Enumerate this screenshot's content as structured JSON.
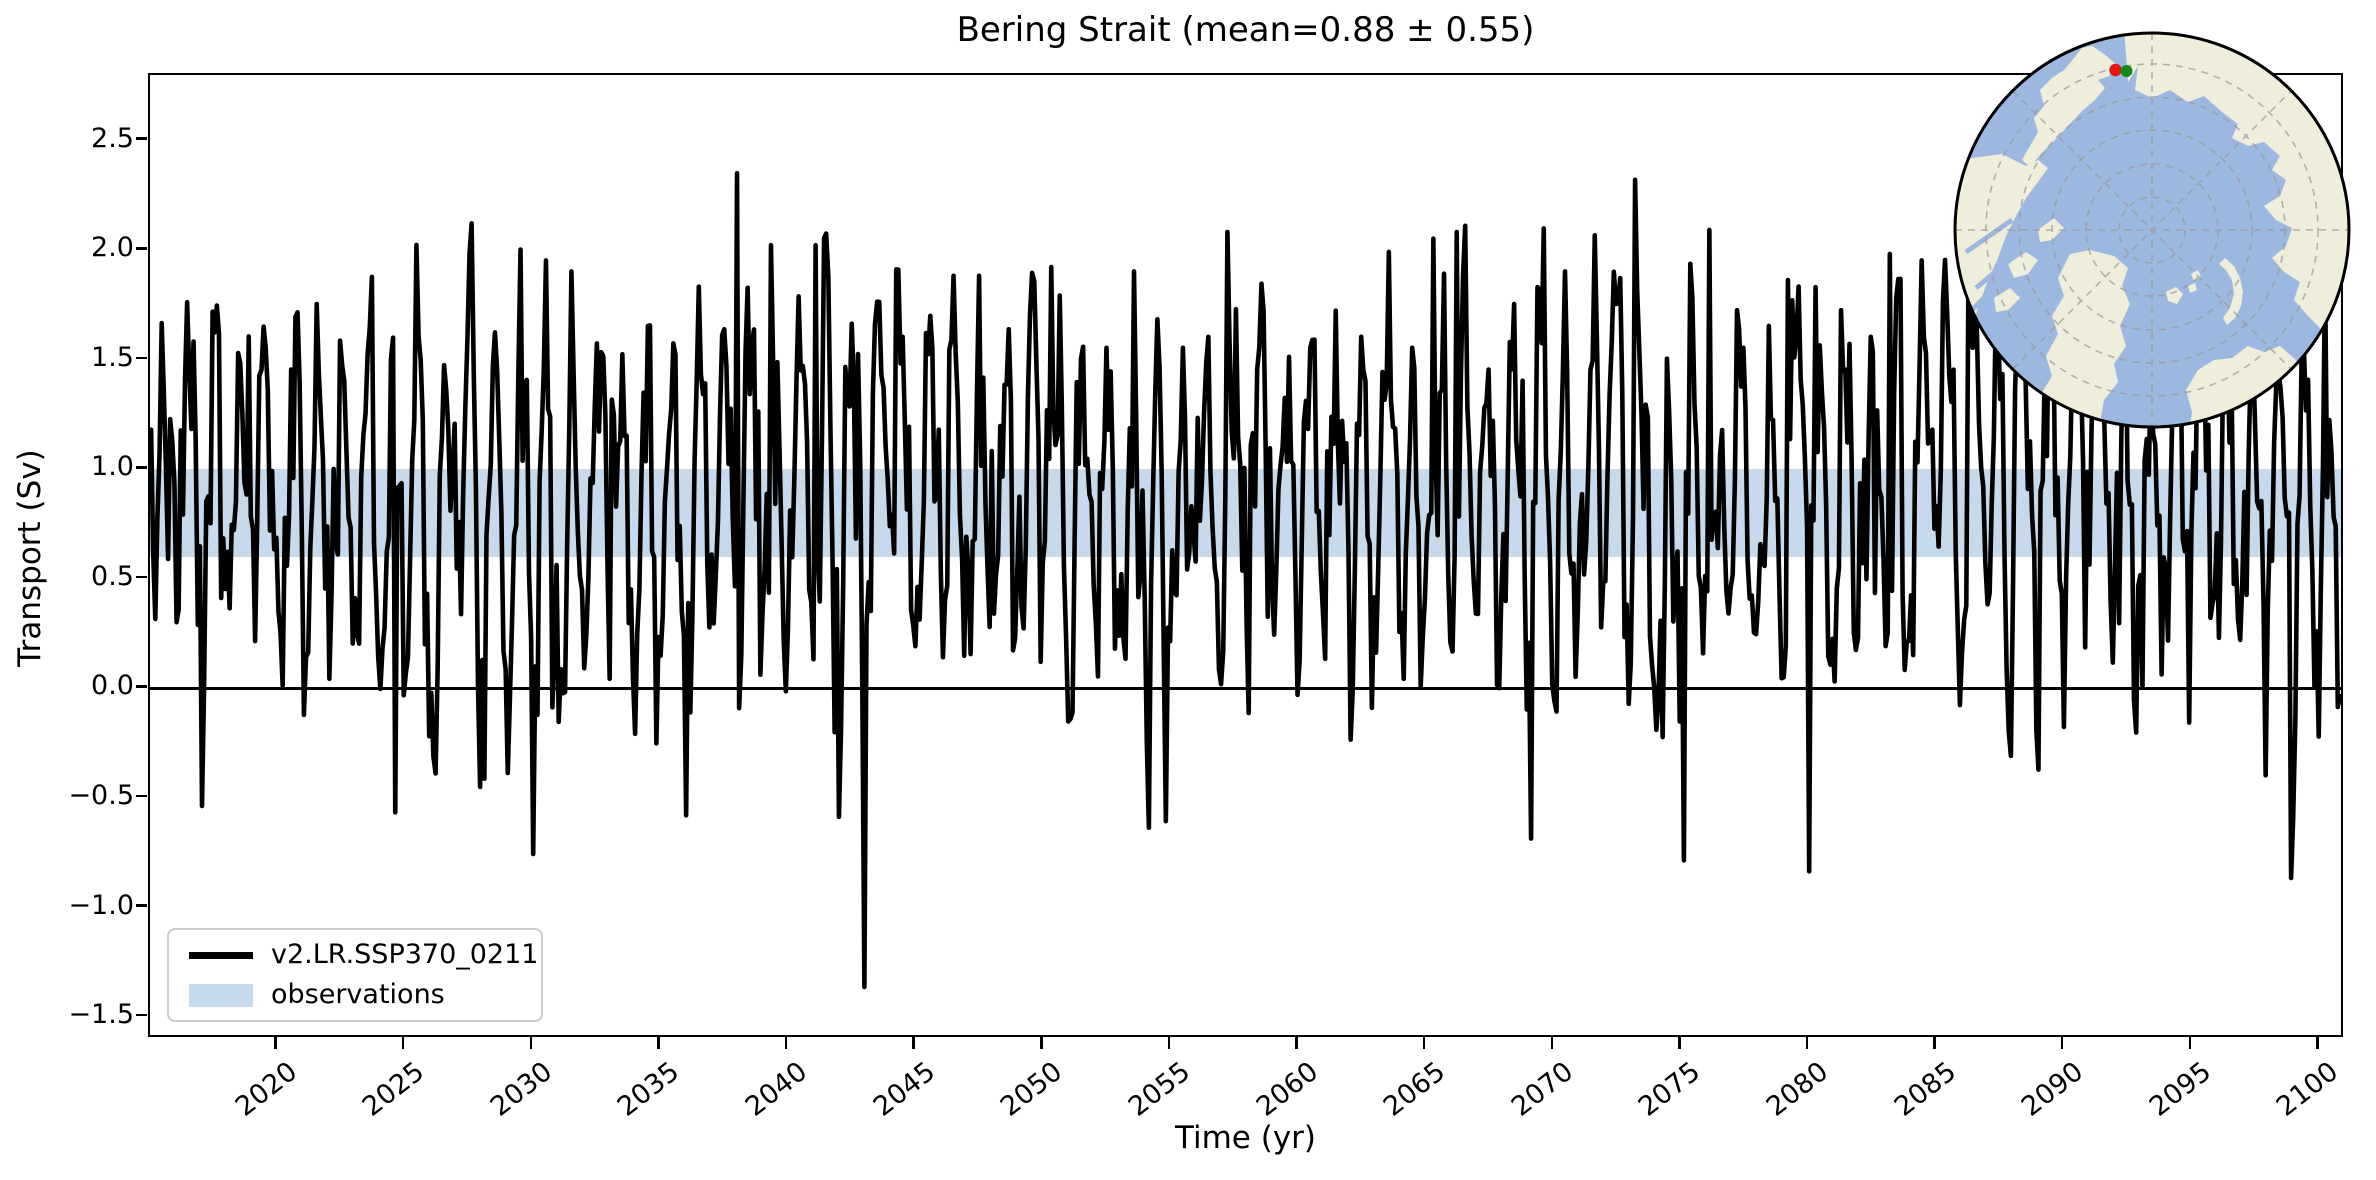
{
  "chart_data": {
    "type": "line",
    "title": "Bering Strait (mean=0.88 ± 0.55)",
    "xlabel": "Time (yr)",
    "ylabel": "Transport (Sv)",
    "xlim": [
      2015,
      2101
    ],
    "ylim": [
      -1.6,
      2.8
    ],
    "grid": false,
    "xticks": [
      2020,
      2025,
      2030,
      2035,
      2040,
      2045,
      2050,
      2055,
      2060,
      2065,
      2070,
      2075,
      2080,
      2085,
      2090,
      2095,
      2100
    ],
    "yticks": [
      2.5,
      2.0,
      1.5,
      1.0,
      0.5,
      0.0,
      -0.5,
      -1.0,
      -1.5
    ],
    "ytick_labels": [
      "2.5",
      "2.0",
      "1.5",
      "1.0",
      "0.5",
      "0.0",
      "−0.5",
      "−1.0",
      "−1.5"
    ],
    "zero_line_y": 0.0,
    "series": [
      {
        "name": "v2.LR.SSP370_0211",
        "color": "#000000",
        "line_width": 4.6,
        "sampling": "monthly",
        "x_start": 2015.0417,
        "x_step": 0.0833333,
        "n_points": 1032,
        "stats": {
          "mean": 0.88,
          "std": 0.55,
          "min": -1.38,
          "max": 2.35
        },
        "synthesis": {
          "seed": 7,
          "seasonal_amplitude": 0.62,
          "seasonal_peak_month": 7,
          "noise_std": 0.33,
          "ar1": 0.35
        },
        "anchors": [
          [
            2016.5,
            1.45
          ],
          [
            2017.0,
            -0.55
          ],
          [
            2017.5,
            1.62
          ],
          [
            2018.5,
            1.48
          ],
          [
            2019.5,
            1.55
          ],
          [
            2020.5,
            1.45
          ],
          [
            2021.5,
            1.75
          ],
          [
            2022.5,
            1.47
          ],
          [
            2023.5,
            1.52
          ],
          [
            2024.6,
            -0.58
          ],
          [
            2025.5,
            1.6
          ],
          [
            2026.5,
            1.47
          ],
          [
            2027.5,
            1.98
          ],
          [
            2028.5,
            1.62
          ],
          [
            2029.5,
            2.0
          ],
          [
            2030.0,
            -0.77
          ],
          [
            2030.5,
            1.95
          ],
          [
            2031.5,
            1.9
          ],
          [
            2032.5,
            1.57
          ],
          [
            2033.5,
            1.52
          ],
          [
            2034.5,
            1.65
          ],
          [
            2035.5,
            1.57
          ],
          [
            2036.5,
            1.83
          ],
          [
            2038.0,
            2.35
          ],
          [
            2039.4,
            2.02
          ],
          [
            2041.1,
            2.02
          ],
          [
            2042.0,
            -0.6
          ],
          [
            2043.0,
            -1.38
          ],
          [
            2044.5,
            1.6
          ],
          [
            2045.5,
            1.52
          ],
          [
            2046.5,
            1.88
          ],
          [
            2047.5,
            1.88
          ],
          [
            2048.5,
            1.38
          ],
          [
            2049.5,
            1.7
          ],
          [
            2050.4,
            1.92
          ],
          [
            2051.5,
            1.5
          ],
          [
            2052.5,
            1.55
          ],
          [
            2053.6,
            1.9
          ],
          [
            2054.2,
            -0.65
          ],
          [
            2054.9,
            -0.62
          ],
          [
            2055.5,
            1.55
          ],
          [
            2056.5,
            1.6
          ],
          [
            2057.3,
            2.08
          ],
          [
            2058.5,
            1.55
          ],
          [
            2059.5,
            1.32
          ],
          [
            2060.5,
            1.55
          ],
          [
            2061.5,
            1.72
          ],
          [
            2062.5,
            1.6
          ],
          [
            2063.5,
            1.38
          ],
          [
            2064.5,
            1.55
          ],
          [
            2065.4,
            2.05
          ],
          [
            2066.3,
            2.08
          ],
          [
            2067.5,
            1.45
          ],
          [
            2068.5,
            1.75
          ],
          [
            2069.2,
            -0.7
          ],
          [
            2070.5,
            1.9
          ],
          [
            2071.5,
            1.45
          ],
          [
            2072.5,
            1.75
          ],
          [
            2073.3,
            2.32
          ],
          [
            2074.5,
            1.5
          ],
          [
            2075.2,
            -0.8
          ],
          [
            2076.2,
            2.09
          ],
          [
            2077.5,
            1.55
          ],
          [
            2078.5,
            1.65
          ],
          [
            2079.3,
            1.86
          ],
          [
            2080.1,
            -0.85
          ],
          [
            2081.5,
            1.45
          ],
          [
            2082.5,
            1.6
          ],
          [
            2083.3,
            1.98
          ],
          [
            2084.5,
            1.95
          ],
          [
            2085.5,
            1.7
          ],
          [
            2086.5,
            1.55
          ],
          [
            2087.5,
            1.65
          ],
          [
            2088.5,
            1.5
          ],
          [
            2089.5,
            1.85
          ],
          [
            2090.5,
            1.7
          ],
          [
            2091.5,
            1.75
          ],
          [
            2092.5,
            1.8
          ],
          [
            2093.5,
            1.5
          ],
          [
            2094.5,
            1.7
          ],
          [
            2095.5,
            1.45
          ],
          [
            2096.5,
            1.55
          ],
          [
            2097.5,
            1.55
          ],
          [
            2098.0,
            -0.41
          ],
          [
            2099.0,
            -0.88
          ],
          [
            2099.5,
            1.55
          ],
          [
            2100.4,
            1.9
          ]
        ]
      }
    ],
    "observations_band": {
      "label": "observations",
      "ymin": 0.6,
      "ymax": 1.0,
      "color": "#c6daec"
    }
  },
  "legend": {
    "items": [
      {
        "label": "v2.LR.SSP370_0211",
        "swatch": "line",
        "color": "#000000"
      },
      {
        "label": "observations",
        "swatch": "patch",
        "color": "#c6daec"
      }
    ]
  },
  "inset_map": {
    "type": "north-polar-locator-map",
    "ocean_color": "#9cb8e0",
    "land_color": "#efeedb",
    "graticule_color": "#9a9a9a",
    "rim_color": "#000000",
    "markers": [
      {
        "name": "red-marker",
        "color": "#e41414"
      },
      {
        "name": "green-marker",
        "color": "#118a1c"
      }
    ]
  }
}
